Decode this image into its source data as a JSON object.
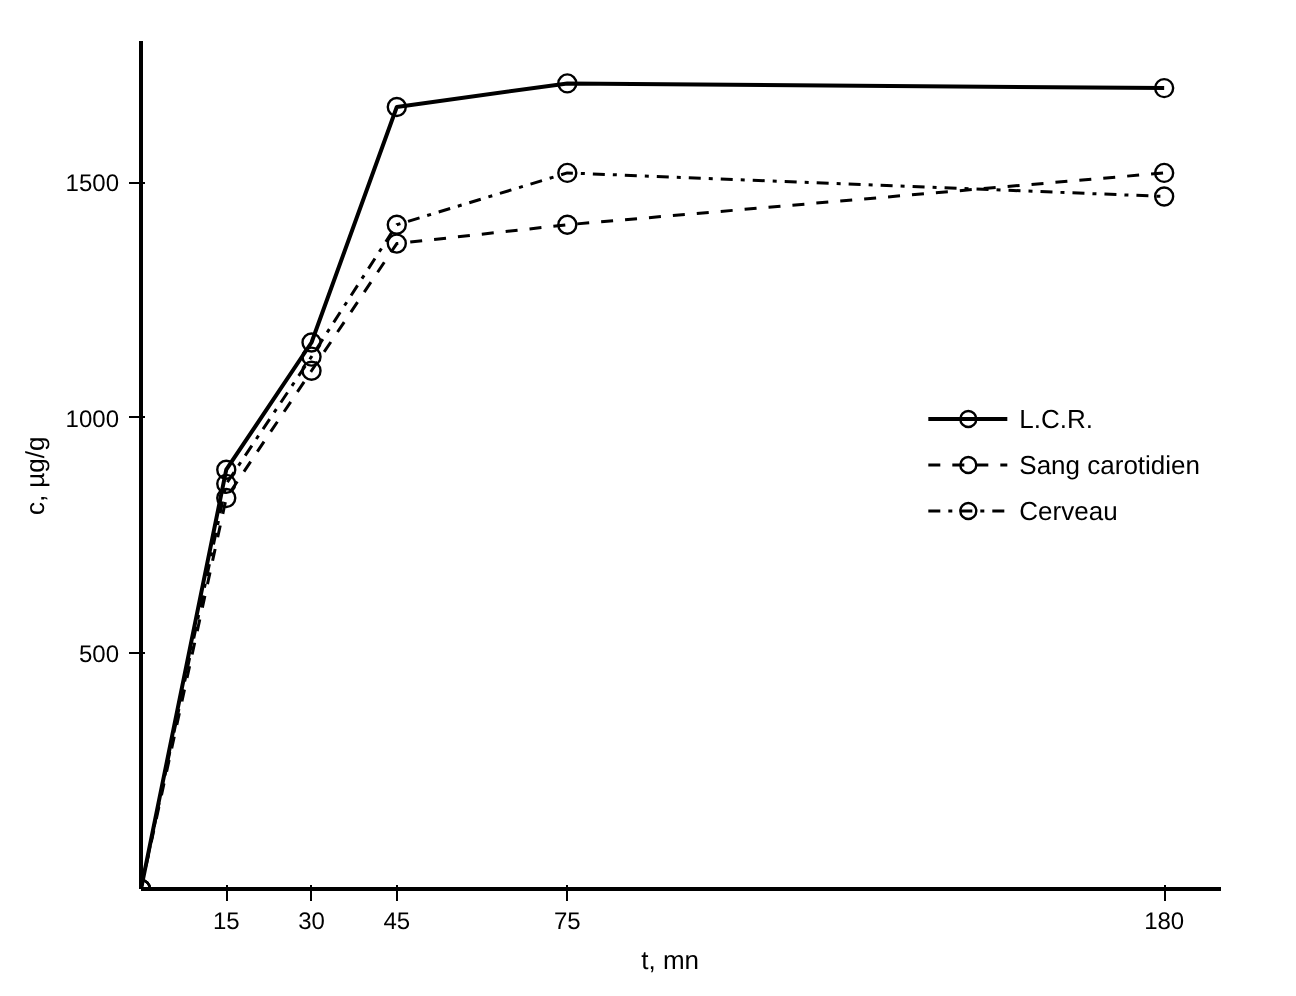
{
  "chart_data": {
    "type": "line",
    "xlabel": "t,    mn",
    "ylabel": "c,    µg/g",
    "x": [
      0,
      15,
      30,
      45,
      75,
      180
    ],
    "series": [
      {
        "name": "L.C.R.",
        "color": "#000000",
        "line_style": "solid",
        "values": [
          0,
          890,
          1160,
          1660,
          1710,
          1700
        ]
      },
      {
        "name": "Sang carotidien",
        "color": "#000000",
        "line_style": "dashed",
        "values": [
          0,
          830,
          1100,
          1370,
          1410,
          1520
        ]
      },
      {
        "name": "Cerveau",
        "color": "#000000",
        "line_style": "dashdot",
        "values": [
          0,
          860,
          1130,
          1410,
          1520,
          1470
        ]
      }
    ],
    "marker": "circle",
    "xlim": [
      0,
      190
    ],
    "ylim": [
      0,
      1800
    ],
    "xticks": [
      15,
      30,
      45,
      75,
      180
    ],
    "yticks": [
      500,
      1000,
      1500
    ],
    "grid": false,
    "legend": "right"
  }
}
